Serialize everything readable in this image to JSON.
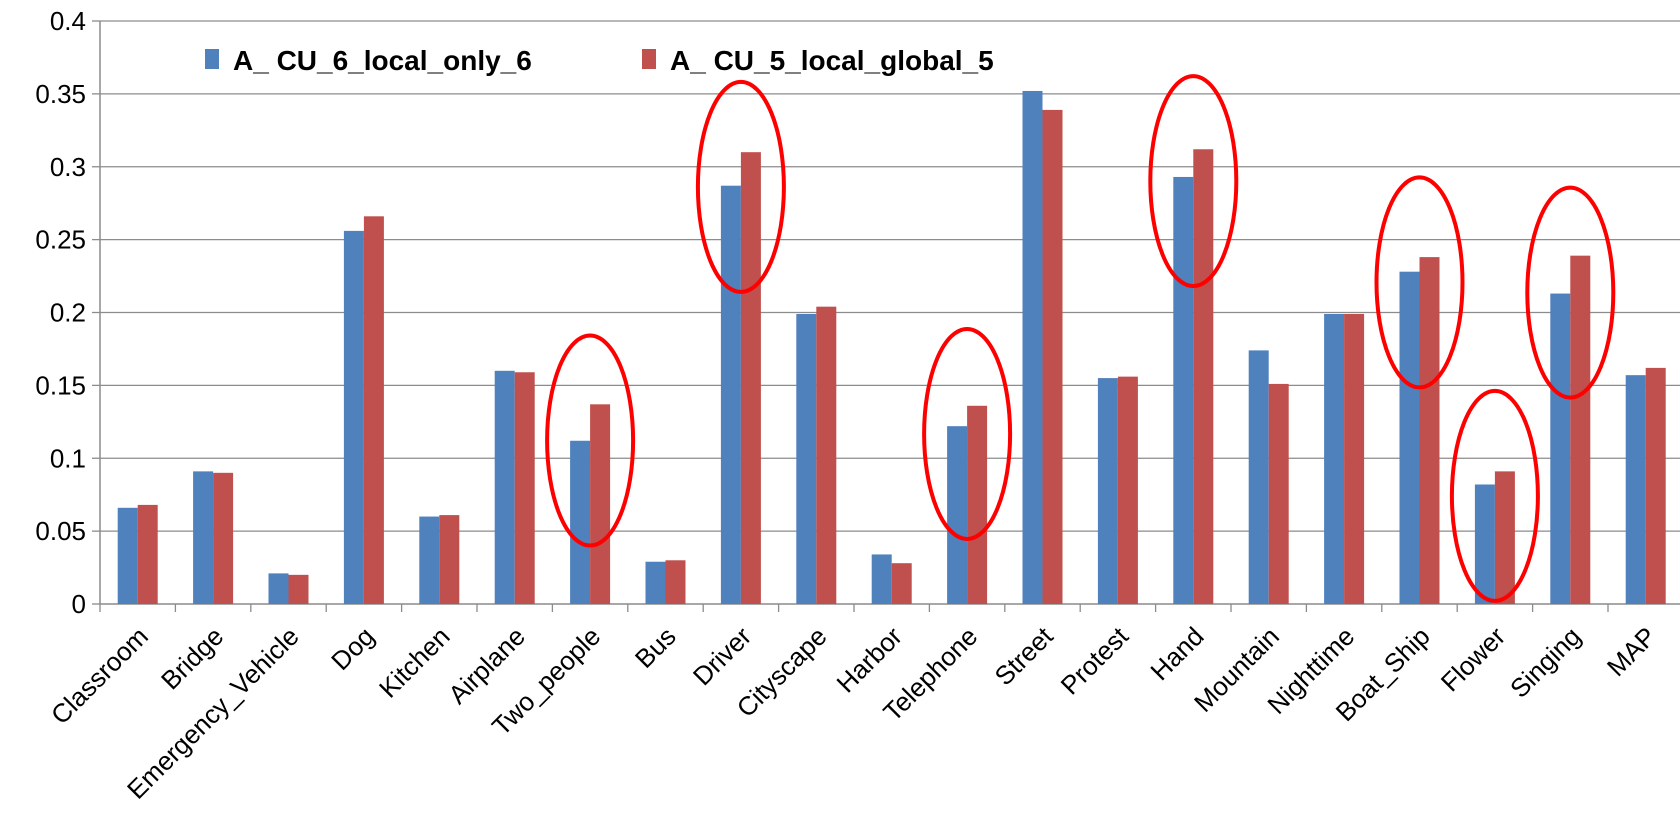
{
  "chart_data": {
    "type": "bar",
    "title": "",
    "xlabel": "",
    "ylabel": "",
    "ylim": [
      0,
      0.4
    ],
    "yticks": [
      0,
      0.05,
      0.1,
      0.15,
      0.2,
      0.25,
      0.3,
      0.35,
      0.4
    ],
    "ytick_labels": [
      "0",
      "0.05",
      "0.1",
      "0.15",
      "0.2",
      "0.25",
      "0.3",
      "0.35",
      "0.4"
    ],
    "grid": true,
    "legend_position": "top-left",
    "categories": [
      "Classroom",
      "Bridge",
      "Emergency_Vehicle",
      "Dog",
      "Kitchen",
      "Airplane",
      "Two_people",
      "Bus",
      "Driver",
      "Cityscape",
      "Harbor",
      "Telephone",
      "Street",
      "Protest",
      "Hand",
      "Mountain",
      "Nighttime",
      "Boat_Ship",
      "Flower",
      "Singing",
      "MAP"
    ],
    "series": [
      {
        "name": "A_ CU_6_local_only_6",
        "color": "#4f81bd",
        "values": [
          0.066,
          0.091,
          0.021,
          0.256,
          0.06,
          0.16,
          0.112,
          0.029,
          0.287,
          0.199,
          0.034,
          0.122,
          0.352,
          0.155,
          0.293,
          0.174,
          0.199,
          0.228,
          0.082,
          0.213,
          0.157
        ]
      },
      {
        "name": "A_ CU_5_local_global_5",
        "color": "#c0504d",
        "values": [
          0.068,
          0.09,
          0.02,
          0.266,
          0.061,
          0.159,
          0.137,
          0.03,
          0.31,
          0.204,
          0.028,
          0.136,
          0.339,
          0.156,
          0.312,
          0.151,
          0.199,
          0.238,
          0.091,
          0.239,
          0.162
        ]
      }
    ],
    "highlighted_categories": [
      "Two_people",
      "Driver",
      "Telephone",
      "Hand",
      "Boat_Ship",
      "Flower",
      "Singing"
    ],
    "highlight_color": "#ff0000"
  }
}
